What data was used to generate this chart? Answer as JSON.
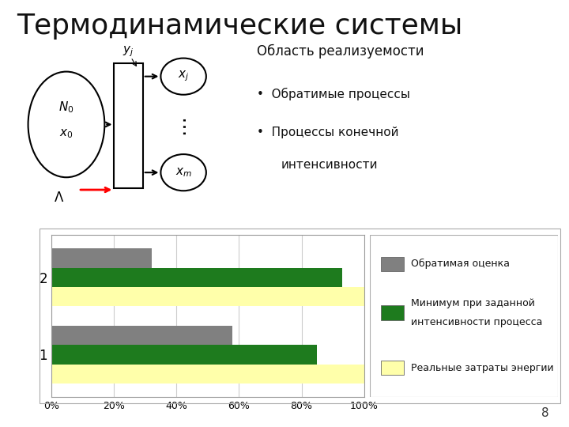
{
  "title": "Термодинамические системы",
  "title_fontsize": 26,
  "slide_bg": "#ffffff",
  "text_area": {
    "header": "Область реализуемости",
    "bullets": [
      "Обратимые процессы",
      "Процессы конечной\nинтенсивности"
    ],
    "header_fontsize": 12,
    "bullet_fontsize": 11
  },
  "chart": {
    "categories": [
      "1",
      "2"
    ],
    "series": [
      {
        "name": "Реальные затраты энергии",
        "values": [
          100,
          100
        ],
        "color": "#ffffaa"
      },
      {
        "name": "Минимум при заданной\nинтенсивности процесса",
        "values": [
          85,
          93
        ],
        "color": "#1e7b1e"
      },
      {
        "name": "Обратимая оценка",
        "values": [
          58,
          32
        ],
        "color": "#808080"
      }
    ],
    "xlim": [
      0,
      100
    ],
    "xlabel_ticks": [
      "0%",
      "20%",
      "40%",
      "60%",
      "80%",
      "100%"
    ],
    "xlabel_tick_vals": [
      0,
      20,
      40,
      60,
      80,
      100
    ],
    "chart_bg": "#ffffff",
    "grid_color": "#cccccc",
    "bar_height": 0.25,
    "legend_fontsize": 9,
    "legend_series_order": [
      2,
      1,
      0
    ],
    "legend_names": [
      "Обратимая оценка",
      "Минимум при заданной\nинтенсивности процесса",
      "Реальные затраты энергии"
    ],
    "legend_colors": [
      "#808080",
      "#1e7b1e",
      "#ffffaa"
    ]
  },
  "page_number": "8"
}
